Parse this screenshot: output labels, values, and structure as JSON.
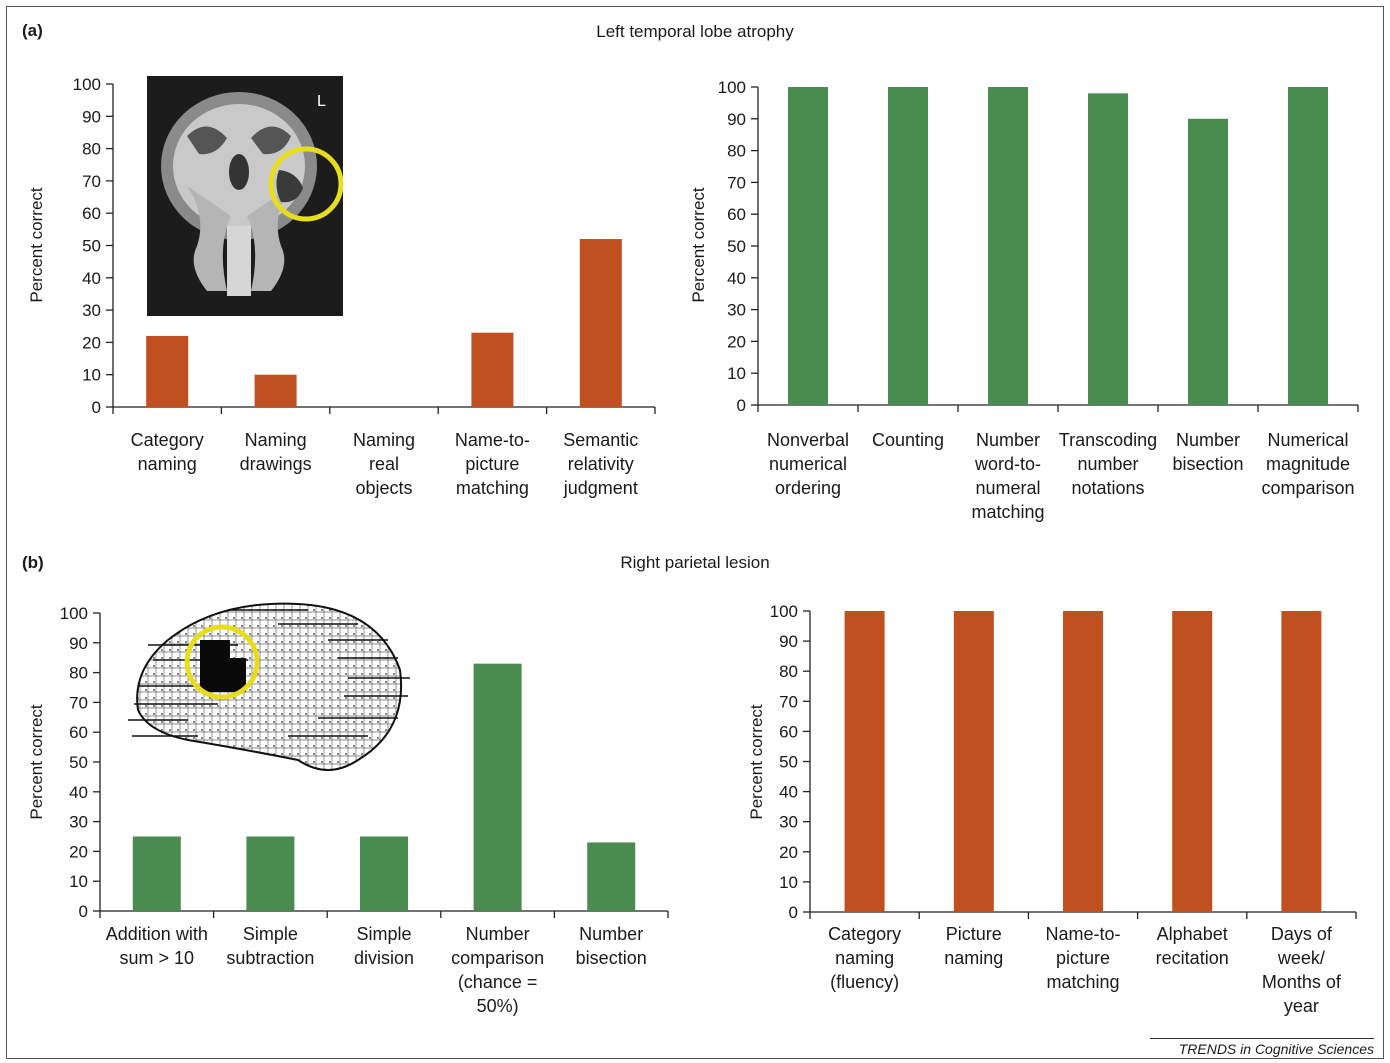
{
  "panel_a": {
    "letter": "(a)",
    "title": "Left temporal lobe atrophy",
    "mri_marker": "L"
  },
  "panel_b": {
    "letter": "(b)",
    "title": "Right parietal lesion"
  },
  "footer": "TRENDS in Cognitive Sciences",
  "colors": {
    "orange": "#c0501f",
    "green": "#4a8b50",
    "highlight": "#e8dc1e"
  },
  "chart_data": [
    {
      "type": "bar",
      "ylabel": "Percent correct",
      "ylim": [
        0,
        100
      ],
      "yticks": [
        0,
        10,
        20,
        30,
        40,
        50,
        60,
        70,
        80,
        90,
        100
      ],
      "color": "#c0501f",
      "categories": [
        [
          "Category",
          "naming"
        ],
        [
          "Naming",
          "drawings"
        ],
        [
          "Naming",
          "real",
          "objects"
        ],
        [
          "Name-to-",
          "picture",
          "matching"
        ],
        [
          "Semantic",
          "relativity",
          "judgment"
        ]
      ],
      "values": [
        22,
        10,
        0,
        23,
        52
      ]
    },
    {
      "type": "bar",
      "ylabel": "Percent correct",
      "ylim": [
        0,
        100
      ],
      "yticks": [
        0,
        10,
        20,
        30,
        40,
        50,
        60,
        70,
        80,
        90,
        100
      ],
      "color": "#4a8b50",
      "categories": [
        [
          "Nonverbal",
          "numerical",
          "ordering"
        ],
        [
          "Counting"
        ],
        [
          "Number",
          "word-to-",
          "numeral",
          "matching"
        ],
        [
          "Transcoding",
          "number",
          "notations"
        ],
        [
          "Number",
          "bisection"
        ],
        [
          "Numerical",
          "magnitude",
          "comparison"
        ]
      ],
      "values": [
        100,
        100,
        100,
        98,
        90,
        100
      ]
    },
    {
      "type": "bar",
      "ylabel": "Percent correct",
      "ylim": [
        0,
        100
      ],
      "yticks": [
        0,
        10,
        20,
        30,
        40,
        50,
        60,
        70,
        80,
        90,
        100
      ],
      "color": "#4a8b50",
      "categories": [
        [
          "Addition with",
          "sum > 10"
        ],
        [
          "Simple",
          "subtraction"
        ],
        [
          "Simple",
          "division"
        ],
        [
          "Number",
          "comparison",
          "(chance =",
          "50%)"
        ],
        [
          "Number",
          "bisection"
        ]
      ],
      "values": [
        25,
        25,
        25,
        83,
        23
      ]
    },
    {
      "type": "bar",
      "ylabel": "Percent correct",
      "ylim": [
        0,
        100
      ],
      "yticks": [
        0,
        10,
        20,
        30,
        40,
        50,
        60,
        70,
        80,
        90,
        100
      ],
      "color": "#c0501f",
      "categories": [
        [
          "Category",
          "naming",
          "(fluency)"
        ],
        [
          "Picture",
          "naming"
        ],
        [
          "Name-to-",
          "picture",
          "matching"
        ],
        [
          "Alphabet",
          "recitation"
        ],
        [
          "Days of",
          "week/",
          "Months of",
          "year"
        ]
      ],
      "values": [
        100,
        100,
        100,
        100,
        100
      ]
    }
  ]
}
